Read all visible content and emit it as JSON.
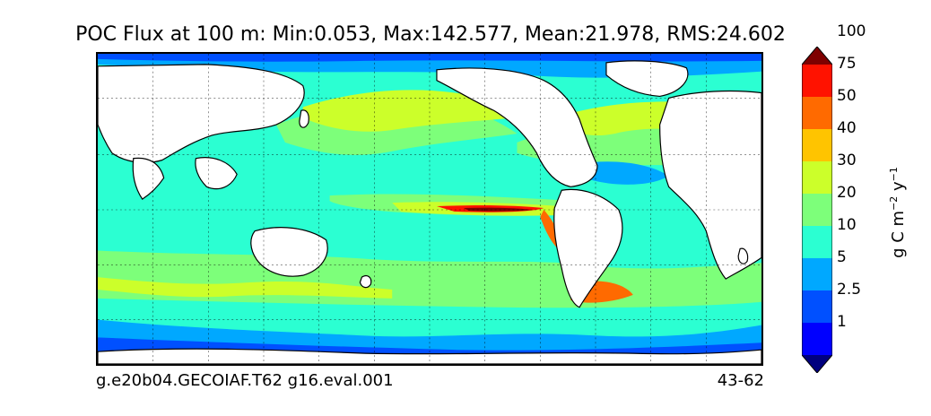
{
  "title": "POC Flux at 100 m: Min:0.053, Max:142.577, Mean:21.978, RMS:24.602",
  "footer": {
    "left": "g.e20b04.GECOIAF.T62 g16.eval.001",
    "right": "43-62"
  },
  "colorbar": {
    "unit_main": "g C m",
    "unit_exp1": "−2",
    "unit_mid": " y",
    "unit_exp2": "−1",
    "tick_labels": [
      "1",
      "2.5",
      "5",
      "10",
      "20",
      "30",
      "40",
      "50",
      "75",
      "100"
    ],
    "colors": [
      "#00007f",
      "#0000ff",
      "#0050ff",
      "#00a8ff",
      "#2bffd2",
      "#7dff7a",
      "#ccff2a",
      "#ffc400",
      "#ff6a00",
      "#ff1200",
      "#7f0000"
    ]
  },
  "palette": {
    "land": "#ffffff",
    "ocean_base": "#2bffd2"
  }
}
